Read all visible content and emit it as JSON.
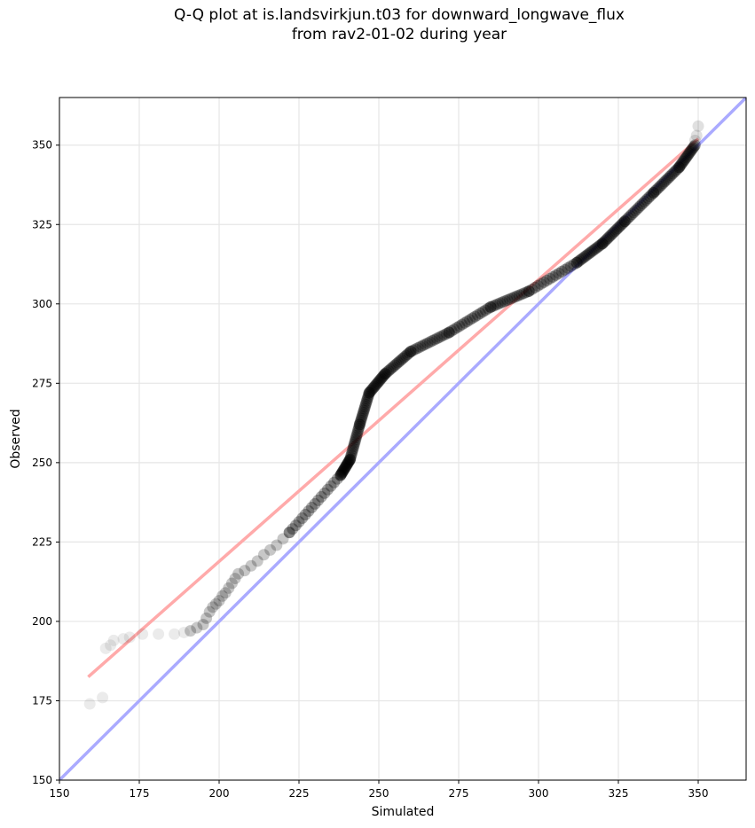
{
  "chart_data": {
    "type": "scatter",
    "title_line1": "Q-Q plot at is.landsvirkjun.t03 for downward_longwave_flux",
    "title_line2": "from rav2-01-02 during year",
    "xlabel": "Simulated",
    "ylabel": "Observed",
    "xlim": [
      150,
      365
    ],
    "ylim": [
      150,
      365
    ],
    "xticks": [
      150,
      175,
      200,
      225,
      250,
      275,
      300,
      325,
      350
    ],
    "yticks": [
      150,
      175,
      200,
      225,
      250,
      275,
      300,
      325,
      350
    ],
    "grid": true,
    "reference_line": {
      "color": "#aaaaff",
      "from": [
        150,
        150
      ],
      "to": [
        365,
        365
      ]
    },
    "fit_line": {
      "color": "#ffaaaa",
      "from": [
        159,
        182.5
      ],
      "to": [
        350,
        352
      ]
    },
    "point_color": "#000000",
    "sparse_points": [
      [
        159.5,
        174
      ],
      [
        163.5,
        176
      ],
      [
        164.5,
        191.5
      ],
      [
        166,
        192.5
      ],
      [
        167,
        194
      ],
      [
        170,
        194.5
      ],
      [
        172,
        195
      ],
      [
        176,
        196
      ],
      [
        181,
        196
      ],
      [
        186,
        196
      ],
      [
        189,
        196.5
      ],
      [
        191,
        197
      ],
      [
        193,
        198
      ],
      [
        195,
        199
      ],
      [
        196,
        201
      ],
      [
        197,
        203
      ],
      [
        198,
        204.5
      ],
      [
        199,
        205.5
      ],
      [
        200,
        206.5
      ],
      [
        201,
        208
      ],
      [
        202,
        209
      ],
      [
        203,
        210.5
      ],
      [
        204,
        212
      ],
      [
        205,
        213.5
      ],
      [
        206,
        215
      ],
      [
        208,
        216
      ],
      [
        210,
        217.5
      ],
      [
        212,
        219
      ],
      [
        214,
        221
      ],
      [
        216,
        222.5
      ],
      [
        218,
        224
      ],
      [
        220,
        226
      ],
      [
        222,
        228
      ]
    ],
    "dense_segments": [
      {
        "from": [
          222,
          228
        ],
        "to": [
          238,
          246
        ]
      },
      {
        "from": [
          238,
          246
        ],
        "to": [
          241,
          251
        ]
      },
      {
        "from": [
          241,
          251
        ],
        "to": [
          244,
          262
        ]
      },
      {
        "from": [
          244,
          262
        ],
        "to": [
          247,
          272
        ]
      },
      {
        "from": [
          247,
          272
        ],
        "to": [
          252,
          278
        ]
      },
      {
        "from": [
          252,
          278
        ],
        "to": [
          260,
          285
        ]
      },
      {
        "from": [
          260,
          285
        ],
        "to": [
          272,
          291
        ]
      },
      {
        "from": [
          272,
          291
        ],
        "to": [
          285,
          299
        ]
      },
      {
        "from": [
          285,
          299
        ],
        "to": [
          297,
          304
        ]
      },
      {
        "from": [
          297,
          304
        ],
        "to": [
          312,
          313
        ]
      },
      {
        "from": [
          312,
          313
        ],
        "to": [
          320,
          319
        ]
      },
      {
        "from": [
          320,
          319
        ],
        "to": [
          327,
          326
        ]
      },
      {
        "from": [
          327,
          326
        ],
        "to": [
          336,
          335
        ]
      },
      {
        "from": [
          336,
          335
        ],
        "to": [
          344,
          343
        ]
      },
      {
        "from": [
          344,
          343
        ],
        "to": [
          349,
          350
        ]
      }
    ],
    "top_sparse_points": [
      [
        350,
        356
      ],
      [
        349.5,
        353
      ],
      [
        349,
        351.5
      ]
    ]
  }
}
